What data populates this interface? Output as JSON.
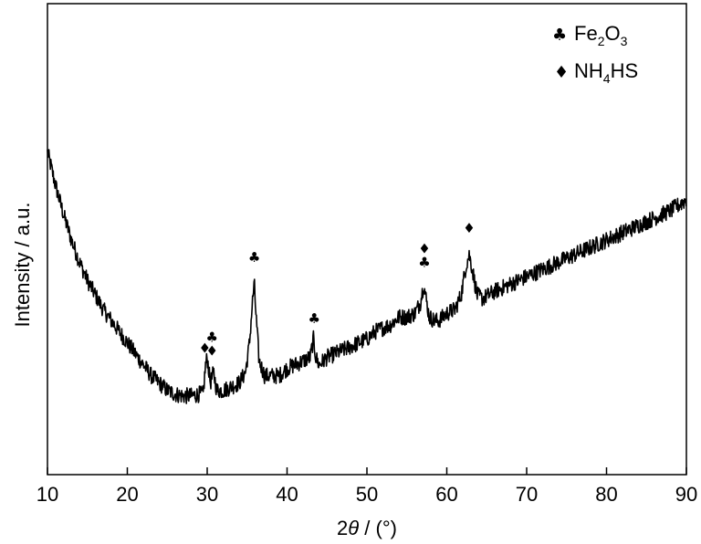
{
  "chart_data": {
    "type": "line",
    "xlabel_prefix": "2",
    "xlabel_theta": "θ",
    "xlabel_suffix": " / (°)",
    "ylabel": "Intensity / a.u.",
    "xlim": [
      10,
      90
    ],
    "ylim": [
      0,
      100
    ],
    "x_ticks": [
      "10",
      "20",
      "30",
      "40",
      "50",
      "60",
      "70",
      "80",
      "90"
    ],
    "y_ticks_labeled": false,
    "grid": false,
    "legend_position": "top-right",
    "legend": [
      {
        "symbol": "♣",
        "label_main": "Fe",
        "sub1": "2",
        "mid": "O",
        "sub2": "3"
      },
      {
        "symbol": "♦",
        "label_main": "NH",
        "sub1": "4",
        "mid": "HS",
        "sub2": ""
      }
    ],
    "series": [
      {
        "x": [
          10,
          11,
          12,
          13,
          14,
          15,
          16,
          17,
          18,
          19,
          20,
          21,
          22,
          23,
          24,
          25,
          26,
          27,
          28,
          29,
          29.5,
          29.8,
          30.0,
          30.4,
          30.8,
          31.2,
          32,
          33,
          34,
          34.8,
          35.3,
          35.7,
          35.9,
          36.1,
          36.5,
          37.2,
          38,
          39,
          40,
          41,
          42,
          42.9,
          43.3,
          43.6,
          44.0,
          45,
          46,
          47,
          48,
          49,
          50,
          51,
          52,
          53,
          54,
          55,
          56,
          56.7,
          57.1,
          57.4,
          57.8,
          58.5,
          59,
          60,
          61,
          61.8,
          62.4,
          62.8,
          63.2,
          63.8,
          64.5,
          66,
          68,
          70,
          72,
          74,
          76,
          78,
          80,
          82,
          84,
          86,
          88,
          90
        ],
        "y": [
          76,
          67,
          59,
          52,
          46,
          41,
          37,
          33,
          30,
          27,
          24,
          21,
          18,
          15,
          13,
          11,
          10,
          9.5,
          9.5,
          10,
          10,
          18,
          20,
          13,
          16,
          11,
          11,
          12,
          13,
          16,
          24,
          36,
          40,
          32,
          19,
          15,
          15,
          15,
          17,
          18,
          19,
          20,
          25,
          20,
          18,
          20,
          21,
          22,
          23,
          24,
          25,
          27,
          28,
          29,
          31,
          31,
          32,
          35,
          40,
          36,
          31,
          30,
          30,
          32,
          33,
          37,
          45,
          48,
          44,
          37,
          36,
          38,
          40,
          42,
          44,
          46,
          48,
          50,
          52,
          54,
          56,
          58,
          60,
          63
        ]
      }
    ],
    "annotations": [
      {
        "x": 29.7,
        "symbols": "♦"
      },
      {
        "x": 30.6,
        "symbols": "♣♦"
      },
      {
        "x": 35.9,
        "symbols": "♣"
      },
      {
        "x": 43.4,
        "symbols": "♣"
      },
      {
        "x": 57.2,
        "symbols": "♦♣"
      },
      {
        "x": 62.8,
        "symbols": "♦"
      }
    ]
  }
}
